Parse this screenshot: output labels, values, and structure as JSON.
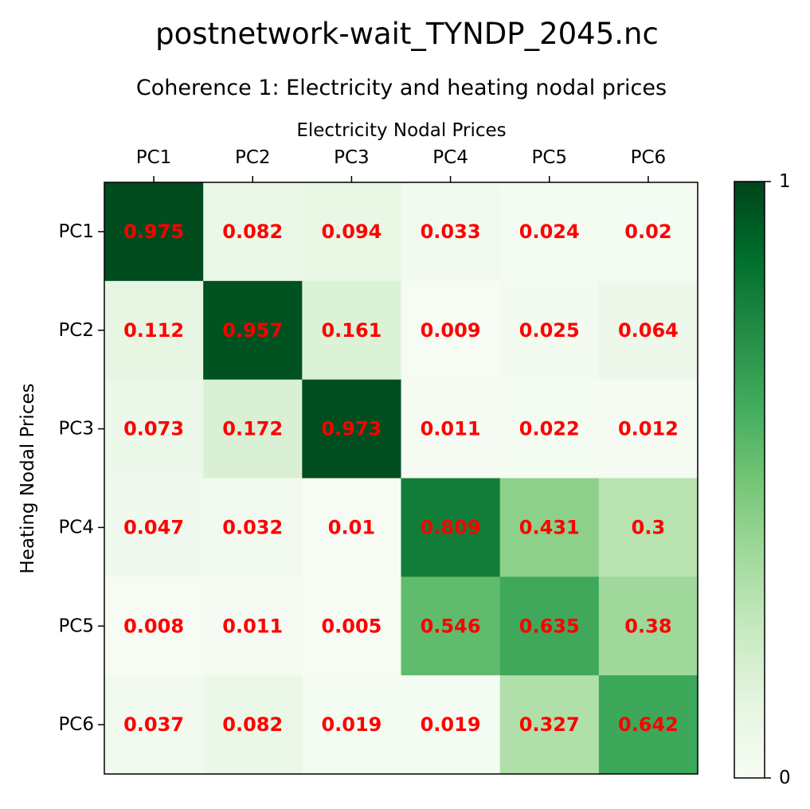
{
  "chart_data": {
    "type": "heatmap",
    "suptitle": "postnetwork-wait_TYNDP_2045.nc",
    "title": "Coherence 1: Electricity and heating nodal prices",
    "xlabel": "Electricity Nodal Prices",
    "ylabel": "Heating Nodal Prices",
    "x_categories": [
      "PC1",
      "PC2",
      "PC3",
      "PC4",
      "PC5",
      "PC6"
    ],
    "y_categories": [
      "PC1",
      "PC2",
      "PC3",
      "PC4",
      "PC5",
      "PC6"
    ],
    "values": [
      [
        0.975,
        0.082,
        0.094,
        0.033,
        0.024,
        0.02
      ],
      [
        0.112,
        0.957,
        0.161,
        0.009,
        0.025,
        0.064
      ],
      [
        0.073,
        0.172,
        0.973,
        0.011,
        0.022,
        0.012
      ],
      [
        0.047,
        0.032,
        0.01,
        0.809,
        0.431,
        0.3
      ],
      [
        0.008,
        0.011,
        0.005,
        0.546,
        0.635,
        0.38
      ],
      [
        0.037,
        0.082,
        0.019,
        0.019,
        0.327,
        0.642
      ]
    ],
    "labels": [
      [
        "0.975",
        "0.082",
        "0.094",
        "0.033",
        "0.024",
        "0.02"
      ],
      [
        "0.112",
        "0.957",
        "0.161",
        "0.009",
        "0.025",
        "0.064"
      ],
      [
        "0.073",
        "0.172",
        "0.973",
        "0.011",
        "0.022",
        "0.012"
      ],
      [
        "0.047",
        "0.032",
        "0.01",
        "0.809",
        "0.431",
        "0.3"
      ],
      [
        "0.008",
        "0.011",
        "0.005",
        "0.546",
        "0.635",
        "0.38"
      ],
      [
        "0.037",
        "0.082",
        "0.019",
        "0.019",
        "0.327",
        "0.642"
      ]
    ],
    "colormap": "Greens",
    "vmin": 0,
    "vmax": 1,
    "colorbar_ticks": [
      "0",
      "1"
    ],
    "label_color": "#ff0000"
  }
}
